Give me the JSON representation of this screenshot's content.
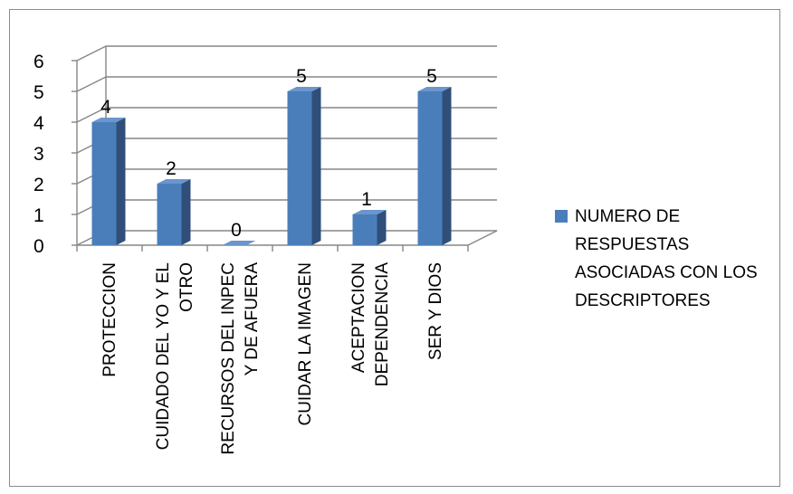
{
  "chart_data": {
    "type": "bar",
    "categories": [
      "PROTECCION",
      "CUIDADO DEL YO Y EL\nOTRO",
      "RECURSOS DEL INPEC\nY DE AFUERA",
      "CUIDAR LA IMAGEN",
      "ACEPTACION\nDEPENDENCIA",
      "SER Y DIOS"
    ],
    "series": [
      {
        "name": "NUMERO DE RESPUESTAS ASOCIADAS CON LOS DESCRIPTORES",
        "values": [
          4,
          2,
          0,
          5,
          1,
          5
        ]
      }
    ],
    "data_labels": [
      "4",
      "2",
      "0",
      "5",
      "1",
      "5"
    ],
    "y_ticks": [
      "0",
      "1",
      "2",
      "3",
      "4",
      "5",
      "6"
    ],
    "ylim": [
      0,
      6
    ],
    "grid": true,
    "legend_position": "right",
    "bar_color": "#4a7ebb",
    "bar_side_color": "#2f4f7a",
    "bar_top_color": "#6b95cc"
  }
}
